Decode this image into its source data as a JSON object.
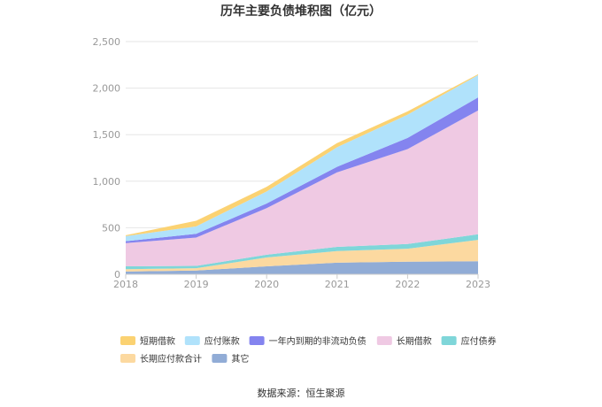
{
  "chart_data": {
    "type": "area",
    "stacked": true,
    "title": "历年主要负债堆积图（亿元）",
    "categories": [
      "2018",
      "2019",
      "2020",
      "2021",
      "2022",
      "2023"
    ],
    "ylim": [
      0,
      2500
    ],
    "yticks": [
      "0",
      "500",
      "1,000",
      "1,500",
      "2,000",
      "2,500"
    ],
    "xlabel": "",
    "ylabel": "",
    "grid": true,
    "legend_position": "bottom",
    "series": [
      {
        "name": "其它",
        "color": "#91acd6",
        "values": [
          30,
          40,
          85,
          125,
          135,
          140
        ]
      },
      {
        "name": "长期应付款合计",
        "color": "#fcd9a0",
        "values": [
          25,
          25,
          95,
          125,
          140,
          230
        ]
      },
      {
        "name": "应付债券",
        "color": "#7fd6d9",
        "values": [
          30,
          25,
          30,
          45,
          50,
          60
        ]
      },
      {
        "name": "长期借款",
        "color": "#efc9e3",
        "values": [
          250,
          305,
          500,
          800,
          1020,
          1330
        ]
      },
      {
        "name": "一年内到期的非流动负债",
        "color": "#8484ef",
        "values": [
          20,
          40,
          50,
          60,
          120,
          140
        ]
      },
      {
        "name": "应付账款",
        "color": "#b0e2fb",
        "values": [
          55,
          80,
          130,
          210,
          250,
          240
        ]
      },
      {
        "name": "短期借款",
        "color": "#fbd272",
        "values": [
          10,
          60,
          50,
          45,
          35,
          10
        ]
      }
    ],
    "legend_order": [
      "短期借款",
      "应付账款",
      "一年内到期的非流动负债",
      "长期借款",
      "应付债券",
      "长期应付款合计",
      "其它"
    ]
  },
  "footer": {
    "source": "数据来源：恒生聚源"
  }
}
